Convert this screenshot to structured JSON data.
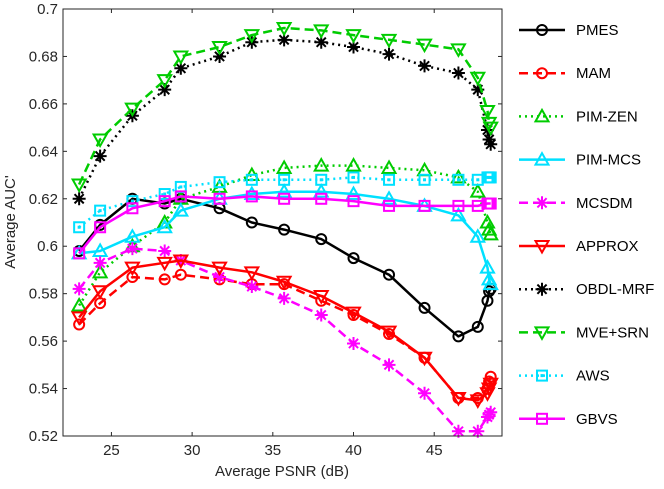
{
  "chart_data": {
    "type": "line",
    "title": "",
    "xlabel": "Average PSNR (dB)",
    "ylabel": "Average AUC'",
    "xlim": [
      22,
      49.2
    ],
    "ylim": [
      0.52,
      0.7
    ],
    "xticks": [
      25,
      30,
      35,
      40,
      45
    ],
    "yticks": [
      0.52,
      0.54,
      0.56,
      0.58,
      0.6,
      0.62,
      0.64,
      0.66,
      0.68,
      0.7
    ],
    "xtick_labels": [
      "25",
      "30",
      "35",
      "40",
      "45"
    ],
    "ytick_labels": [
      "0.52",
      "0.54",
      "0.56",
      "0.58",
      "0.6",
      "0.62",
      "0.64",
      "0.66",
      "0.68",
      "0.7"
    ],
    "grid": false,
    "legend_position": "outside-right",
    "x": [
      23.0,
      24.3,
      26.3,
      28.3,
      29.3,
      31.7,
      33.7,
      35.7,
      38.0,
      40.0,
      42.2,
      44.4,
      46.5,
      47.7,
      48.3,
      48.4,
      48.5
    ],
    "series": [
      {
        "name": "PMES",
        "color": "#000000",
        "dash": "solid",
        "marker": "circle",
        "values": [
          0.598,
          0.609,
          0.62,
          0.618,
          0.62,
          0.616,
          0.61,
          0.607,
          0.603,
          0.595,
          0.588,
          0.574,
          0.562,
          0.566,
          0.577,
          0.581,
          0.582
        ]
      },
      {
        "name": "MAM",
        "color": "#ff0000",
        "dash": "dashed",
        "marker": "circle",
        "values": [
          0.567,
          0.576,
          0.587,
          0.586,
          0.588,
          0.586,
          0.584,
          0.584,
          0.577,
          0.571,
          0.563,
          0.553,
          0.536,
          0.536,
          0.54,
          0.543,
          0.545
        ]
      },
      {
        "name": "PIM-ZEN",
        "color": "#00cc00",
        "dash": "dotted",
        "marker": "triangle-up",
        "values": [
          0.575,
          0.589,
          0.6,
          0.61,
          0.62,
          0.625,
          0.63,
          0.633,
          0.634,
          0.634,
          0.633,
          0.632,
          0.629,
          0.623,
          0.61,
          0.607,
          0.605
        ]
      },
      {
        "name": "PIM-MCS",
        "color": "#00e0ff",
        "dash": "solid",
        "marker": "triangle-up",
        "values": [
          0.597,
          0.598,
          0.604,
          0.608,
          0.615,
          0.62,
          0.622,
          0.623,
          0.623,
          0.622,
          0.62,
          0.617,
          0.613,
          0.604,
          0.591,
          0.586,
          0.584
        ]
      },
      {
        "name": "MCSDM",
        "color": "#ff00ff",
        "dash": "dashed",
        "marker": "asterisk",
        "values": [
          0.582,
          0.593,
          0.599,
          0.598,
          0.594,
          0.587,
          0.583,
          0.578,
          0.571,
          0.559,
          0.55,
          0.538,
          0.522,
          0.522,
          0.528,
          0.529,
          0.53
        ]
      },
      {
        "name": "APPROX",
        "color": "#ff0000",
        "dash": "solid",
        "marker": "triangle-down",
        "values": [
          0.57,
          0.581,
          0.591,
          0.593,
          0.594,
          0.591,
          0.589,
          0.585,
          0.579,
          0.572,
          0.564,
          0.553,
          0.536,
          0.535,
          0.538,
          0.54,
          0.542
        ]
      },
      {
        "name": "OBDL-MRF",
        "color": "#000000",
        "dash": "dotted",
        "marker": "asterisk",
        "values": [
          0.62,
          0.638,
          0.655,
          0.666,
          0.675,
          0.68,
          0.686,
          0.687,
          0.686,
          0.684,
          0.681,
          0.676,
          0.673,
          0.666,
          0.649,
          0.645,
          0.643
        ]
      },
      {
        "name": "MVE+SRN",
        "color": "#00cc00",
        "dash": "dashed",
        "marker": "triangle-down",
        "values": [
          0.626,
          0.645,
          0.658,
          0.67,
          0.68,
          0.684,
          0.689,
          0.692,
          0.691,
          0.689,
          0.687,
          0.685,
          0.683,
          0.671,
          0.657,
          0.652,
          0.65
        ]
      },
      {
        "name": "AWS",
        "color": "#00e0ff",
        "dash": "dotted",
        "marker": "square-dot",
        "values": [
          0.608,
          0.615,
          0.619,
          0.622,
          0.625,
          0.627,
          0.628,
          0.628,
          0.628,
          0.629,
          0.628,
          0.628,
          0.628,
          0.628,
          0.629,
          0.629,
          0.629
        ]
      },
      {
        "name": "GBVS",
        "color": "#ff00ff",
        "dash": "solid",
        "marker": "square",
        "values": [
          0.597,
          0.608,
          0.616,
          0.619,
          0.621,
          0.62,
          0.621,
          0.62,
          0.62,
          0.619,
          0.617,
          0.617,
          0.617,
          0.617,
          0.618,
          0.618,
          0.618
        ]
      }
    ]
  }
}
